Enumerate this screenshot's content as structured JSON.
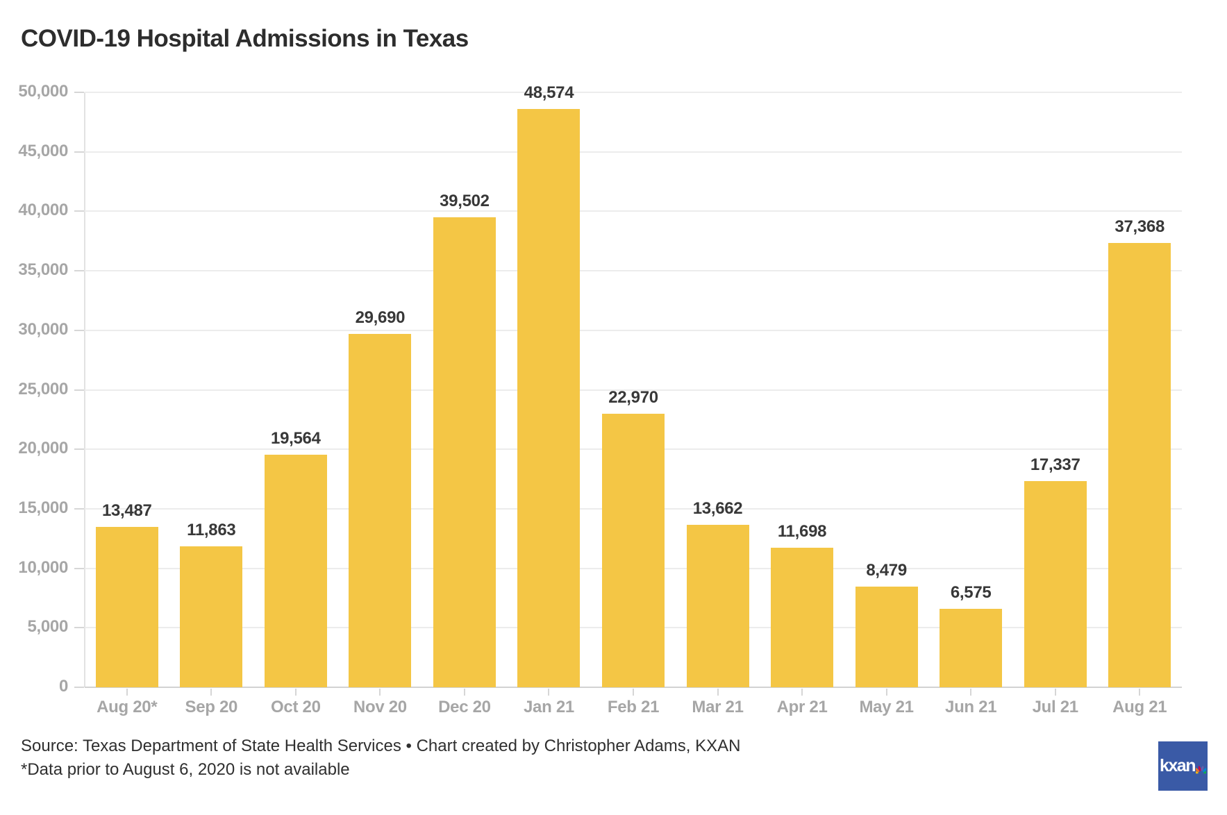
{
  "header": {
    "title": "COVID-19 Hospital Admissions in Texas"
  },
  "chart_data": {
    "type": "bar",
    "title": "COVID-19 Hospital Admissions in Texas",
    "categories": [
      "Aug 20*",
      "Sep 20",
      "Oct 20",
      "Nov 20",
      "Dec 20",
      "Jan 21",
      "Feb 21",
      "Mar 21",
      "Apr 21",
      "May 21",
      "Jun 21",
      "Jul 21",
      "Aug 21"
    ],
    "values": [
      13487,
      11863,
      19564,
      29690,
      39502,
      48574,
      22970,
      13662,
      11698,
      8479,
      6575,
      17337,
      37368
    ],
    "value_labels": [
      "13,487",
      "11,863",
      "19,564",
      "29,690",
      "39,502",
      "48,574",
      "22,970",
      "13,662",
      "11,698",
      "8,479",
      "6,575",
      "17,337",
      "37,368"
    ],
    "xlabel": "",
    "ylabel": "",
    "ylim": [
      0,
      50000
    ],
    "ytick_values": [
      0,
      5000,
      10000,
      15000,
      20000,
      25000,
      30000,
      35000,
      40000,
      45000,
      50000
    ],
    "ytick_labels": [
      "0",
      "5,000",
      "10,000",
      "15,000",
      "20,000",
      "25,000",
      "30,000",
      "35,000",
      "40,000",
      "45,000",
      "50,000"
    ],
    "grid": "on",
    "legend": "none",
    "bar_color": "#f4c645"
  },
  "footer": {
    "source_line": "Source: Texas Department of State Health Services • Chart created by Christopher Adams, KXAN",
    "note_line": "*Data prior to August 6, 2020 is not available"
  },
  "logo": {
    "text": "kxan",
    "background_color": "#3a5aa6",
    "peacock_icon": "nbc-peacock-icon",
    "peacock_colors": [
      "#fcb711",
      "#f37021",
      "#cc004c",
      "#6460aa",
      "#0089d0",
      "#0db14b"
    ]
  },
  "colors": {
    "bar": "#f4c645",
    "title_text": "#2d2d2d",
    "axis_label_text": "#a6a6a6",
    "value_label_text": "#383838",
    "gridline": "#ececec",
    "axis_line": "#d2d2d2",
    "footer_text": "#2f2f2f"
  }
}
